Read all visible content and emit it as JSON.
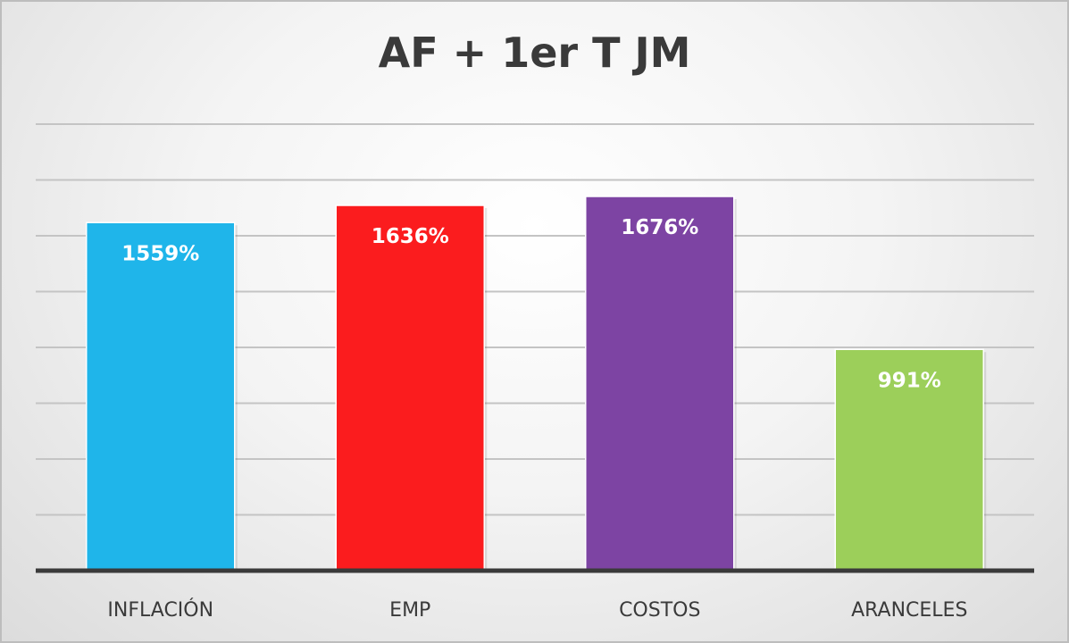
{
  "chart_data": {
    "type": "bar",
    "title": "AF + 1er T JM",
    "categories": [
      "INFLACIÓN",
      "EMP",
      "COSTOS",
      "ARANCELES"
    ],
    "values": [
      1559,
      1636,
      1676,
      991
    ],
    "data_labels": [
      "1559%",
      "1636%",
      "1676%",
      "991%"
    ],
    "colors": [
      "#1fb5ea",
      "#fb1c1e",
      "#7d44a3",
      "#9ccf5a"
    ],
    "xlabel": "",
    "ylabel": "",
    "ylim": [
      0,
      2000
    ],
    "grid": true,
    "legend": "none"
  }
}
